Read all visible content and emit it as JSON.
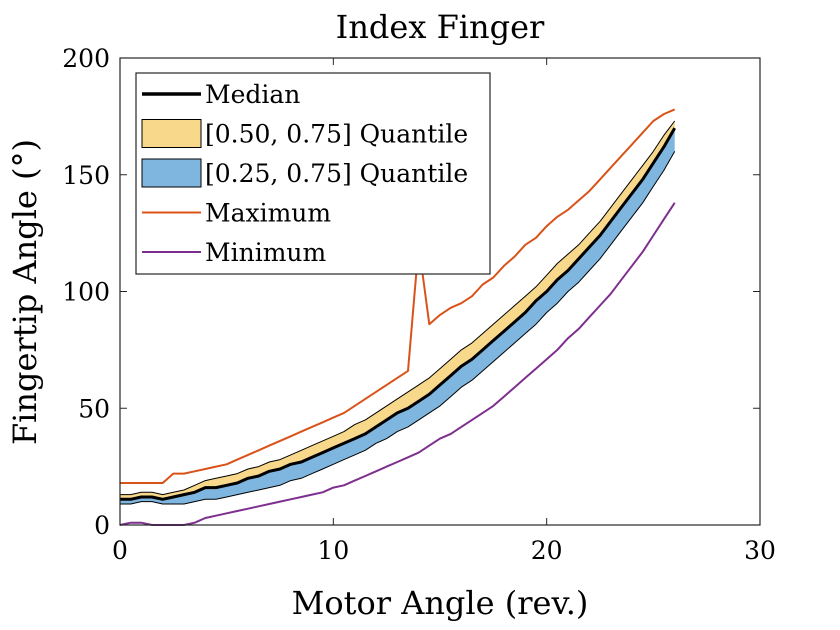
{
  "colors": {
    "median": "#000000",
    "q_upper_fill": "#F8D98C",
    "q_lower_fill": "#7FB6E0",
    "band_edge": "#000000",
    "maximum": "#D95319",
    "minimum": "#7E2F8E"
  },
  "chart_data": {
    "type": "line",
    "title": "Index Finger",
    "xlabel": "Motor Angle (rev.)",
    "ylabel": "Fingertip Angle (°)",
    "xlim": [
      0,
      30
    ],
    "ylim": [
      0,
      200
    ],
    "xticks": [
      0,
      10,
      20,
      30
    ],
    "yticks": [
      0,
      50,
      100,
      150,
      200
    ],
    "grid": false,
    "legend_position": "top-left",
    "legend": [
      {
        "key": "median",
        "label": "Median"
      },
      {
        "key": "q_upper",
        "label": "[0.50, 0.75]  Quantile"
      },
      {
        "key": "q_lower",
        "label": "[0.25, 0.75]  Quantile"
      },
      {
        "key": "maximum",
        "label": "Maximum"
      },
      {
        "key": "minimum",
        "label": "Minimum"
      }
    ],
    "x": [
      0,
      0.5,
      1,
      1.5,
      2,
      2.5,
      3,
      3.5,
      4,
      4.5,
      5,
      5.5,
      6,
      6.5,
      7,
      7.5,
      8,
      8.5,
      9,
      9.5,
      10,
      10.5,
      11,
      11.5,
      12,
      12.5,
      13,
      13.5,
      14,
      14.5,
      15,
      15.5,
      16,
      16.5,
      17,
      17.5,
      18,
      18.5,
      19,
      19.5,
      20,
      20.5,
      21,
      21.5,
      22,
      22.5,
      23,
      23.5,
      24,
      24.5,
      25,
      25.5,
      26
    ],
    "series": [
      {
        "key": "maximum",
        "name": "Maximum",
        "values": [
          18,
          18,
          18,
          18,
          18,
          22,
          22,
          23,
          24,
          25,
          26,
          28,
          30,
          32,
          34,
          36,
          38,
          40,
          42,
          44,
          46,
          48,
          51,
          54,
          57,
          60,
          63,
          66,
          120,
          86,
          90,
          93,
          95,
          98,
          103,
          106,
          111,
          115,
          120,
          123,
          128,
          132,
          135,
          139,
          143,
          148,
          153,
          158,
          163,
          168,
          173,
          176,
          178
        ]
      },
      {
        "key": "q_top",
        "name": "0.75 quantile",
        "values": [
          13,
          13,
          14,
          14,
          13,
          14,
          15,
          17,
          19,
          20,
          21,
          22,
          24,
          25,
          27,
          28,
          30,
          32,
          34,
          36,
          38,
          40,
          43,
          45,
          48,
          51,
          54,
          57,
          60,
          63,
          67,
          71,
          75,
          78,
          82,
          86,
          90,
          94,
          98,
          102,
          107,
          112,
          116,
          120,
          125,
          130,
          136,
          142,
          148,
          154,
          160,
          167,
          173
        ]
      },
      {
        "key": "median",
        "name": "Median",
        "values": [
          11,
          11,
          12,
          12,
          11,
          12,
          13,
          14,
          16,
          16,
          17,
          18,
          20,
          21,
          23,
          24,
          26,
          27,
          29,
          31,
          33,
          35,
          37,
          39,
          42,
          45,
          48,
          50,
          53,
          56,
          60,
          64,
          68,
          71,
          75,
          79,
          83,
          87,
          91,
          96,
          100,
          105,
          109,
          114,
          119,
          124,
          130,
          136,
          142,
          148,
          155,
          162,
          170
        ]
      },
      {
        "key": "q_bottom",
        "name": "0.25 quantile",
        "values": [
          9,
          9,
          10,
          10,
          9,
          9,
          9,
          10,
          11,
          11,
          12,
          13,
          14,
          15,
          16,
          17,
          19,
          20,
          22,
          24,
          26,
          28,
          30,
          32,
          35,
          37,
          40,
          42,
          45,
          48,
          51,
          55,
          59,
          62,
          66,
          70,
          74,
          78,
          82,
          86,
          91,
          95,
          100,
          104,
          109,
          114,
          120,
          126,
          132,
          138,
          145,
          152,
          160
        ]
      },
      {
        "key": "minimum",
        "name": "Minimum",
        "values": [
          0,
          1,
          1,
          0,
          0,
          0,
          0,
          1,
          3,
          4,
          5,
          6,
          7,
          8,
          9,
          10,
          11,
          12,
          13,
          14,
          16,
          17,
          19,
          21,
          23,
          25,
          27,
          29,
          31,
          34,
          37,
          39,
          42,
          45,
          48,
          51,
          55,
          59,
          63,
          67,
          71,
          75,
          80,
          84,
          89,
          94,
          99,
          105,
          111,
          117,
          124,
          131,
          138
        ]
      }
    ]
  }
}
